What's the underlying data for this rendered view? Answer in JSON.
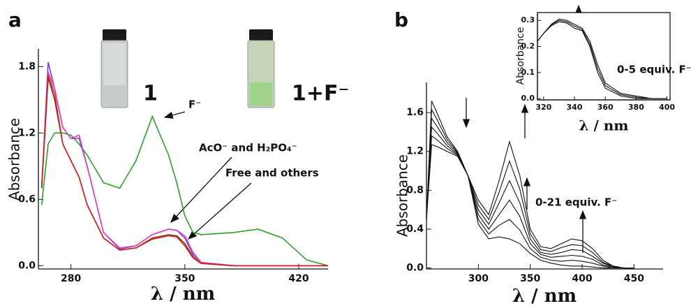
{
  "chart_data": [
    {
      "type": "line",
      "label": "a",
      "xlabel": "λ / nm",
      "ylabel": "Absorbance",
      "annotations": [
        "F⁻",
        "AcO⁻ and H₂PO₄⁻",
        "Free and others",
        "1",
        "1+F⁻"
      ],
      "x": [
        262,
        266,
        270,
        275,
        280,
        285,
        290,
        300,
        310,
        320,
        330,
        340,
        345,
        350,
        355,
        360,
        380,
        395,
        410,
        425,
        438
      ],
      "series": [
        {
          "color": "#2ca02c",
          "values": [
            0.55,
            1.1,
            1.2,
            1.2,
            1.18,
            1.1,
            1.0,
            0.75,
            0.7,
            0.95,
            1.35,
            1.0,
            0.75,
            0.45,
            0.3,
            0.28,
            0.3,
            0.33,
            0.25,
            0.05,
            0.0
          ]
        },
        {
          "color": "#7b3fd0",
          "values": [
            0.7,
            1.84,
            1.6,
            1.25,
            1.15,
            1.15,
            0.9,
            0.3,
            0.15,
            0.18,
            0.28,
            0.33,
            0.32,
            0.25,
            0.1,
            0.03,
            0,
            0,
            0,
            0,
            0
          ]
        },
        {
          "color": "#e040c0",
          "values": [
            0.7,
            1.75,
            1.6,
            1.25,
            1.15,
            1.18,
            0.9,
            0.3,
            0.16,
            0.18,
            0.28,
            0.33,
            0.32,
            0.27,
            0.12,
            0.03,
            0,
            0,
            0,
            0,
            0
          ]
        },
        {
          "color": "#7a3a1a",
          "values": [
            0.7,
            1.7,
            1.5,
            1.1,
            0.95,
            0.8,
            0.55,
            0.25,
            0.14,
            0.16,
            0.25,
            0.28,
            0.27,
            0.2,
            0.08,
            0.02,
            0,
            0,
            0,
            0,
            0
          ]
        },
        {
          "color": "#d62020",
          "values": [
            0.72,
            1.72,
            1.55,
            1.1,
            0.95,
            0.8,
            0.55,
            0.25,
            0.14,
            0.16,
            0.24,
            0.27,
            0.26,
            0.18,
            0.07,
            0.02,
            0,
            0,
            0,
            0,
            0
          ]
        }
      ],
      "xlim": [
        260,
        438
      ],
      "xticks": [
        280,
        350,
        420
      ],
      "ylim": [
        -0.03,
        1.96
      ],
      "yticks": [
        {
          "value": 0,
          "label": "0.0"
        },
        0.6,
        1.2,
        1.8
      ]
    },
    {
      "type": "line",
      "label": "b",
      "xlabel": "λ / nm",
      "ylabel": "Absorbance",
      "annotations": [
        "0-21 equiv. F⁻"
      ],
      "x": [
        250,
        255,
        260,
        270,
        280,
        290,
        300,
        310,
        320,
        330,
        340,
        350,
        360,
        370,
        380,
        390,
        400,
        410,
        420,
        430,
        440,
        450
      ],
      "series": [
        {
          "color": "#111111",
          "values": [
            0.5,
            1.72,
            1.6,
            1.35,
            1.2,
            0.95,
            0.45,
            0.3,
            0.32,
            0.3,
            0.25,
            0.15,
            0.08,
            0.05,
            0.03,
            0.02,
            0.02,
            0.01,
            0,
            0,
            0,
            0
          ]
        },
        {
          "color": "#111111",
          "values": [
            0.5,
            1.63,
            1.53,
            1.32,
            1.19,
            0.95,
            0.5,
            0.35,
            0.44,
            0.5,
            0.39,
            0.2,
            0.11,
            0.08,
            0.07,
            0.08,
            0.07,
            0.05,
            0.02,
            0,
            0,
            0
          ]
        },
        {
          "color": "#111111",
          "values": [
            0.5,
            1.54,
            1.46,
            1.29,
            1.18,
            0.95,
            0.55,
            0.4,
            0.55,
            0.7,
            0.53,
            0.25,
            0.14,
            0.11,
            0.12,
            0.13,
            0.12,
            0.09,
            0.03,
            0.01,
            0,
            0
          ]
        },
        {
          "color": "#111111",
          "values": [
            0.5,
            1.45,
            1.39,
            1.26,
            1.17,
            0.95,
            0.6,
            0.45,
            0.67,
            0.9,
            0.67,
            0.3,
            0.16,
            0.14,
            0.16,
            0.19,
            0.18,
            0.12,
            0.05,
            0.01,
            0,
            0
          ]
        },
        {
          "color": "#111111",
          "values": [
            0.5,
            1.36,
            1.32,
            1.23,
            1.16,
            0.95,
            0.65,
            0.5,
            0.78,
            1.1,
            0.81,
            0.35,
            0.19,
            0.17,
            0.21,
            0.24,
            0.23,
            0.16,
            0.06,
            0.02,
            0,
            0
          ]
        },
        {
          "color": "#111111",
          "values": [
            0.5,
            1.27,
            1.25,
            1.2,
            1.15,
            0.95,
            0.7,
            0.55,
            0.9,
            1.3,
            0.95,
            0.4,
            0.22,
            0.2,
            0.25,
            0.3,
            0.28,
            0.2,
            0.08,
            0.02,
            0,
            0
          ]
        }
      ],
      "xlim": [
        250,
        478
      ],
      "xticks": [
        300,
        350,
        400,
        450
      ],
      "ylim": [
        -0.01,
        1.91
      ],
      "yticks": [
        {
          "value": 0,
          "label": "0.0"
        },
        0.4,
        0.8,
        1.2,
        1.6
      ]
    },
    {
      "type": "line",
      "xlabel": "λ / nm",
      "ylabel": "Absorbance",
      "annotations": [
        "0-5 equiv. F⁻"
      ],
      "x": [
        316,
        320,
        325,
        330,
        335,
        340,
        345,
        350,
        355,
        360,
        370,
        380,
        390,
        400
      ],
      "series": [
        {
          "color": "#111111",
          "values": [
            0.22,
            0.25,
            0.28,
            0.295,
            0.29,
            0.27,
            0.26,
            0.2,
            0.1,
            0.04,
            0.01,
            0,
            0,
            0
          ]
        },
        {
          "color": "#111111",
          "values": [
            0.22,
            0.25,
            0.283,
            0.3,
            0.295,
            0.278,
            0.265,
            0.21,
            0.115,
            0.05,
            0.015,
            0.005,
            0,
            0
          ]
        },
        {
          "color": "#111111",
          "values": [
            0.22,
            0.25,
            0.285,
            0.305,
            0.3,
            0.285,
            0.27,
            0.22,
            0.13,
            0.06,
            0.02,
            0.01,
            0,
            0
          ]
        }
      ],
      "xlim": [
        316,
        402
      ],
      "xticks": [
        320,
        340,
        360,
        380,
        400
      ],
      "ylim": [
        -0.005,
        0.33
      ],
      "yticks": [
        {
          "value": 0,
          "label": "0.0"
        },
        0.1,
        0.2,
        0.3
      ]
    }
  ]
}
